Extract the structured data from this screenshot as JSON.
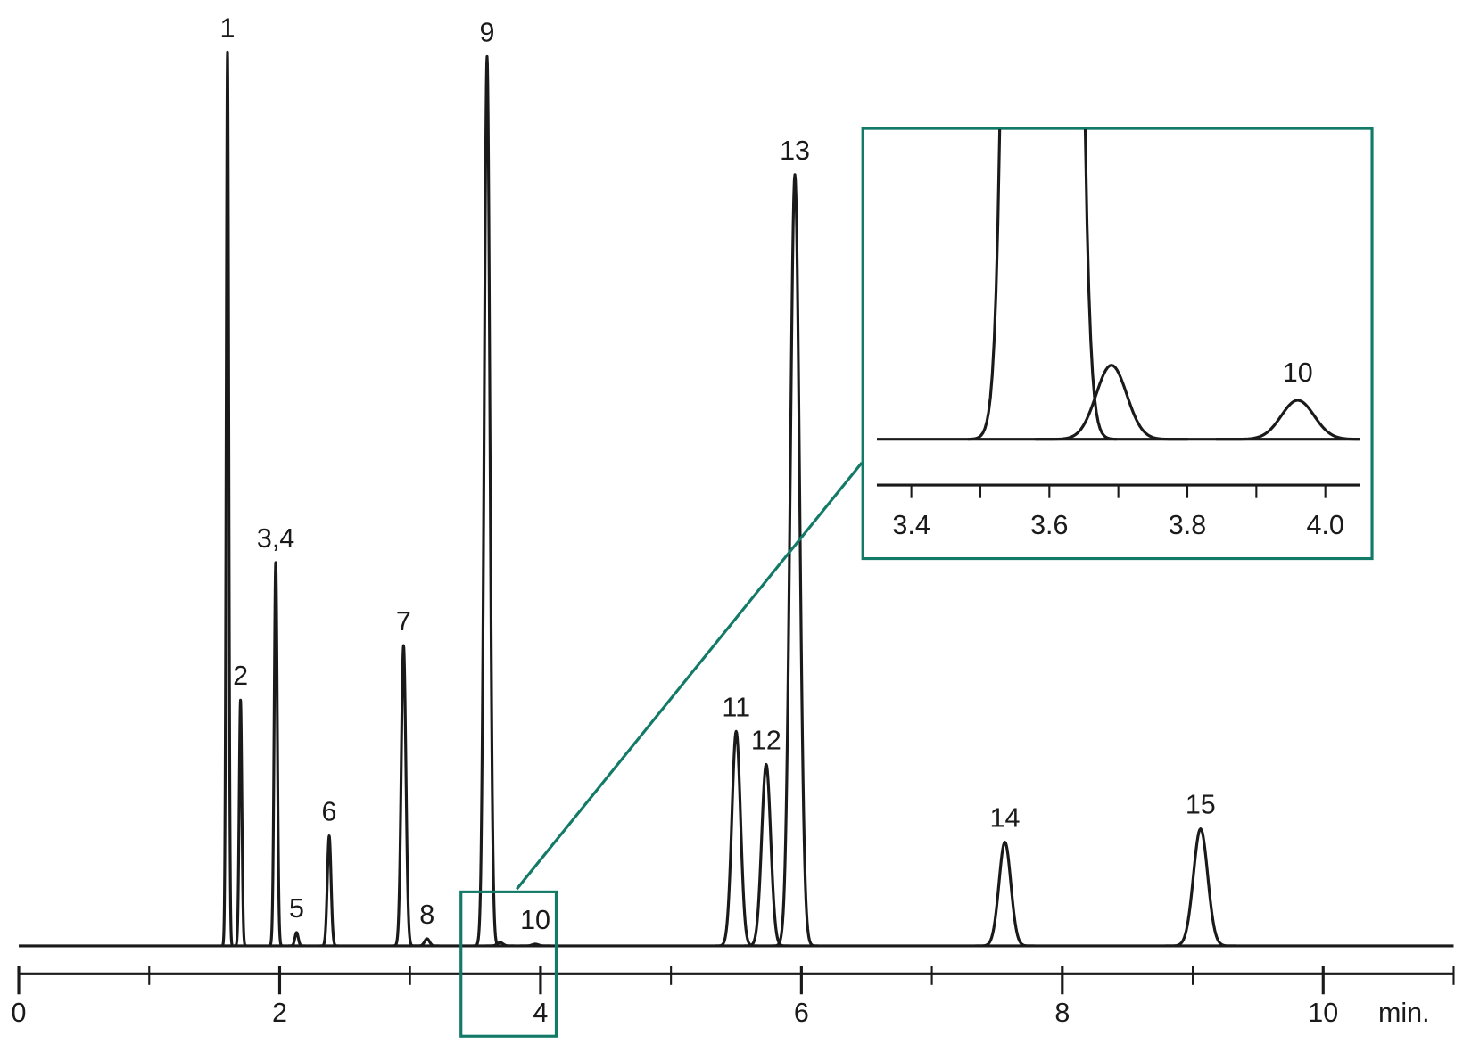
{
  "chart_data": {
    "type": "chromatogram",
    "xlabel": "min.",
    "xlim": [
      0,
      11
    ],
    "xticks": [
      0,
      2,
      4,
      6,
      8,
      10
    ],
    "xminor_ticks": [
      1,
      3,
      5,
      7,
      9,
      11
    ],
    "ylim": [
      0,
      100
    ],
    "color": "#1a1a1a",
    "accent_color": "#137a68",
    "peak_labels": [
      "1",
      "2",
      "3,4",
      "5",
      "6",
      "7",
      "8",
      "9",
      null,
      "10",
      "11",
      "12",
      "13",
      "14",
      "15"
    ],
    "peak_times": [
      1.6,
      1.7,
      1.97,
      2.13,
      2.38,
      2.95,
      3.13,
      3.59,
      3.69,
      3.96,
      5.5,
      5.73,
      5.95,
      7.56,
      9.06
    ],
    "peak_heights": [
      100,
      27.5,
      42.9,
      1.5,
      12.3,
      33.6,
      0.8,
      99.5,
      0.38,
      0.2,
      24,
      20.3,
      86.3,
      11.6,
      13.1
    ],
    "inset": {
      "xlim": [
        3.35,
        4.05
      ],
      "ylim": [
        -0.23,
        1.59
      ],
      "xticks": [
        3.4,
        3.6,
        3.8,
        {
          "value": 4,
          "label": "4.0"
        }
      ],
      "xminor_ticks": [
        3.5,
        3.7,
        3.9
      ]
    }
  }
}
